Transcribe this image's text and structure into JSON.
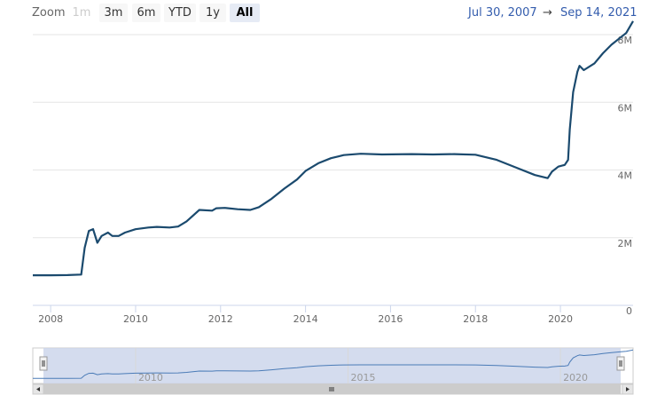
{
  "toolbar": {
    "zoom_label": "Zoom",
    "buttons": [
      {
        "label": "1m",
        "state": "disabled"
      },
      {
        "label": "3m",
        "state": "normal"
      },
      {
        "label": "6m",
        "state": "normal"
      },
      {
        "label": "YTD",
        "state": "normal"
      },
      {
        "label": "1y",
        "state": "normal"
      },
      {
        "label": "All",
        "state": "active"
      }
    ],
    "range_from": "Jul 30, 2007",
    "range_sep": "→",
    "range_to": "Sep 14, 2021"
  },
  "colors": {
    "line": "#1b4a6e",
    "navigator_fill": "#ccd6eb",
    "navigator_line": "#4a7bb7",
    "grid": "#e6e6e6"
  },
  "chart_data": {
    "type": "line",
    "title": "",
    "xlabel": "",
    "ylabel": "",
    "x_ticks": [
      "2008",
      "2010",
      "2012",
      "2014",
      "2016",
      "2018",
      "2020"
    ],
    "y_ticks": [
      "0",
      "2M",
      "4M",
      "6M",
      "8M"
    ],
    "xlim": [
      2007.58,
      2021.71
    ],
    "ylim": [
      0,
      8000000
    ],
    "series": [
      {
        "name": "",
        "x": [
          2007.58,
          2008.0,
          2008.4,
          2008.72,
          2008.8,
          2008.9,
          2009.0,
          2009.1,
          2009.2,
          2009.35,
          2009.45,
          2009.6,
          2009.75,
          2010.0,
          2010.3,
          2010.5,
          2010.8,
          2011.0,
          2011.2,
          2011.5,
          2011.8,
          2011.9,
          2012.1,
          2012.4,
          2012.7,
          2012.9,
          2013.2,
          2013.5,
          2013.8,
          2014.0,
          2014.3,
          2014.6,
          2014.9,
          2015.3,
          2015.8,
          2016.5,
          2017.0,
          2017.5,
          2018.0,
          2018.5,
          2019.0,
          2019.4,
          2019.7,
          2019.8,
          2019.95,
          2020.1,
          2020.18,
          2020.22,
          2020.3,
          2020.4,
          2020.45,
          2020.55,
          2020.8,
          2021.0,
          2021.2,
          2021.4,
          2021.55,
          2021.71
        ],
        "values": [
          890000,
          890000,
          895000,
          910000,
          1700000,
          2200000,
          2250000,
          1850000,
          2050000,
          2150000,
          2050000,
          2050000,
          2150000,
          2250000,
          2300000,
          2320000,
          2300000,
          2330000,
          2480000,
          2820000,
          2800000,
          2870000,
          2880000,
          2840000,
          2820000,
          2900000,
          3150000,
          3450000,
          3720000,
          3970000,
          4200000,
          4350000,
          4440000,
          4480000,
          4460000,
          4470000,
          4460000,
          4470000,
          4450000,
          4300000,
          4050000,
          3850000,
          3760000,
          3950000,
          4100000,
          4150000,
          4300000,
          5200000,
          6300000,
          6900000,
          7080000,
          6950000,
          7150000,
          7450000,
          7700000,
          7900000,
          8050000,
          8400000
        ]
      }
    ],
    "navigator": {
      "x_ticks": [
        "2010",
        "2015",
        "2020"
      ]
    },
    "grid": true,
    "legend": "none"
  }
}
